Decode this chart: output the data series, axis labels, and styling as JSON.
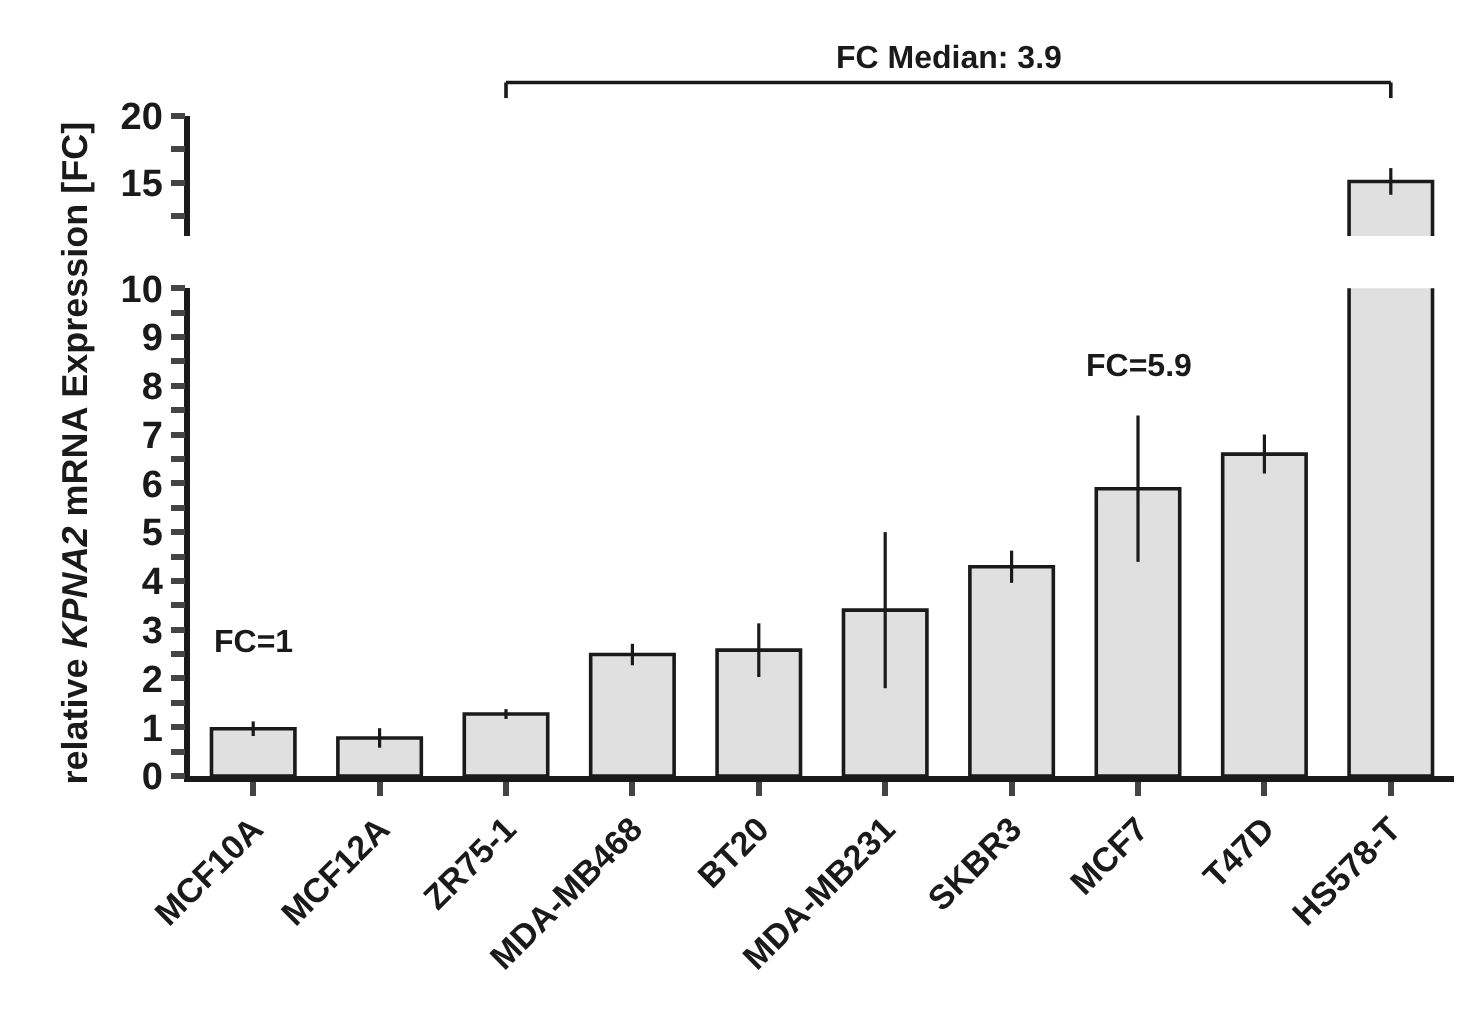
{
  "chart_data": [
    {
      "type": "bar",
      "values": [
        null,
        null,
        null,
        null,
        null,
        null,
        null,
        null,
        null,
        15.1
      ],
      "errors": [
        null,
        null,
        null,
        null,
        null,
        null,
        null,
        null,
        null,
        1.0
      ],
      "color": "#e0e0e0",
      "ylim": [
        11,
        20
      ],
      "yticks": [
        {
          "value": 12.5,
          "label": null
        },
        15,
        {
          "value": 17.5,
          "label": null
        },
        20
      ],
      "tick_labels": "y",
      "annotations": [
        "FC Median: 3.9"
      ]
    },
    {
      "type": "bar",
      "categories": [
        "MCF10A",
        "MCF12A",
        "ZR75-1",
        "MDA-MB468",
        "BT20",
        "MDA-MB231",
        "SKBR3",
        "MCF7",
        "T47D",
        "HS578-T"
      ],
      "values": [
        0.97,
        0.78,
        1.27,
        2.49,
        2.58,
        3.4,
        4.29,
        5.89,
        6.6,
        null
      ],
      "errors": [
        0.15,
        0.2,
        0.1,
        0.22,
        0.55,
        1.6,
        0.33,
        1.5,
        0.4,
        null
      ],
      "color": "#e0e0e0",
      "ylim": [
        0,
        10
      ],
      "yticks": [
        0,
        {
          "value": 0.5,
          "label": null
        },
        1,
        {
          "value": 1.5,
          "label": null
        },
        2,
        {
          "value": 2.5,
          "label": null
        },
        3,
        {
          "value": 3.5,
          "label": null
        },
        4,
        {
          "value": 4.5,
          "label": null
        },
        5,
        {
          "value": 5.5,
          "label": null
        },
        6,
        {
          "value": 6.5,
          "label": null
        },
        7,
        {
          "value": 7.5,
          "label": null
        },
        8,
        {
          "value": 8.5,
          "label": null
        },
        9,
        {
          "value": 9.5,
          "label": null
        },
        10
      ],
      "ylabel": "relative KPNA2 mRNA Expression [FC]",
      "annotations": [
        "FC=1",
        "FC=5.9"
      ]
    }
  ]
}
